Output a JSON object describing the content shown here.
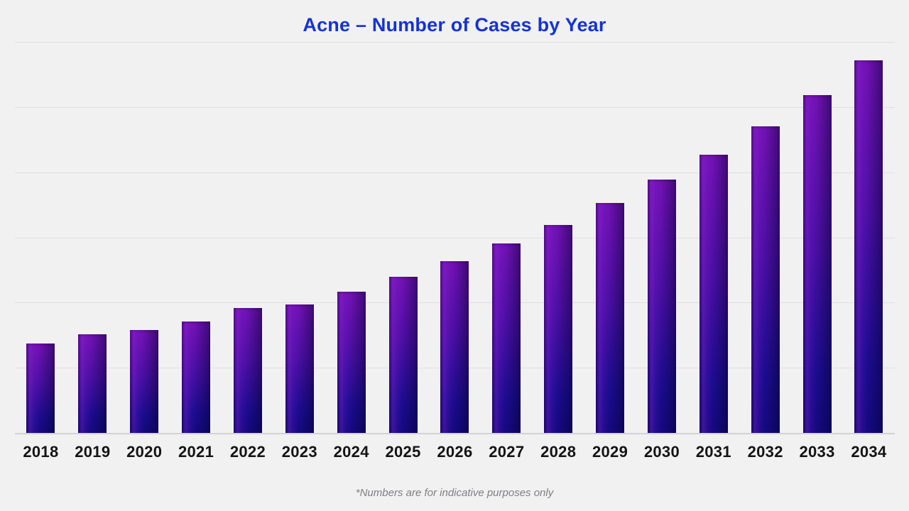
{
  "page": {
    "background_color": "#f1f1f2"
  },
  "header": {
    "title": "Acne – Number of Cases by Year",
    "title_color": "#1433d4"
  },
  "footnote": {
    "text": "*Numbers are for indicative purposes only",
    "color": "#7f7f82"
  },
  "chart_data": {
    "type": "bar",
    "title": "Acne – Number of Cases by Year",
    "xlabel": "",
    "ylabel": "",
    "categories": [
      "2018",
      "2019",
      "2020",
      "2021",
      "2022",
      "2023",
      "2024",
      "2025",
      "2026",
      "2027",
      "2028",
      "2029",
      "2030",
      "2031",
      "2032",
      "2033",
      "2034"
    ],
    "values": [
      24,
      26.4,
      27.6,
      30,
      33.5,
      34.4,
      38,
      42,
      46.2,
      50.8,
      55.9,
      61.8,
      68.1,
      74.7,
      82.3,
      90.7,
      100
    ],
    "value_note": "relative index estimated from bar heights; no numeric y-axis shown (2034 = 100)",
    "ylim": [
      0,
      105
    ],
    "grid": true,
    "gridline_intervals": 6,
    "legend": false,
    "y_axis_tick_labels_visible": false,
    "bar_color_top": "#7212b4",
    "bar_color_bottom": "#150980",
    "bar_highlight_color": "#9e2ce6",
    "gridline_color": "#dfdfe1",
    "baseline_color": "#d2d2d4",
    "x_label_color": "#141414"
  }
}
